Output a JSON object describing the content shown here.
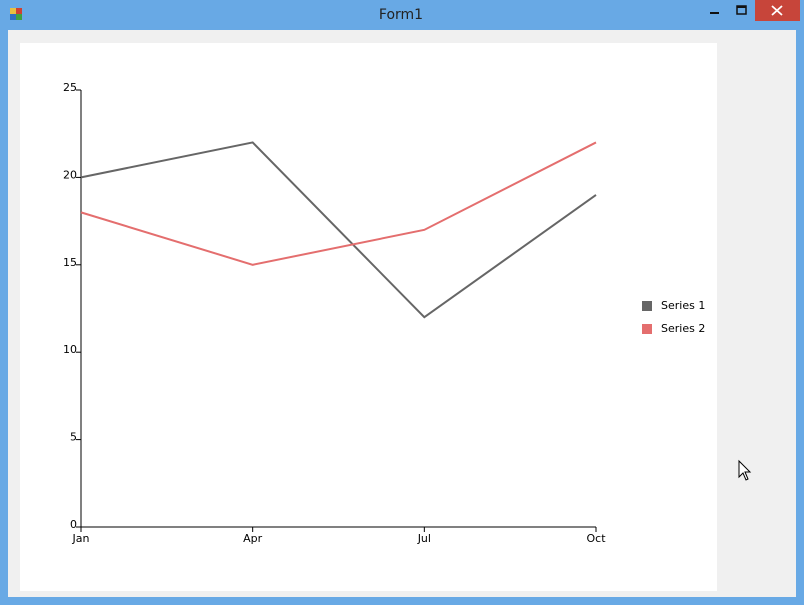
{
  "window": {
    "title": "Form1"
  },
  "chart_data": {
    "type": "line",
    "categories": [
      "Jan",
      "Apr",
      "Jul",
      "Oct"
    ],
    "series": [
      {
        "name": "Series 1",
        "color": "#666666",
        "values": [
          20,
          22,
          12,
          19
        ]
      },
      {
        "name": "Series 2",
        "color": "#e46e6e",
        "values": [
          18,
          15,
          17,
          22
        ]
      }
    ],
    "ylim": [
      0,
      25
    ],
    "yticks": [
      0,
      5,
      10,
      15,
      20,
      25
    ],
    "grid": false,
    "legend": "right"
  }
}
